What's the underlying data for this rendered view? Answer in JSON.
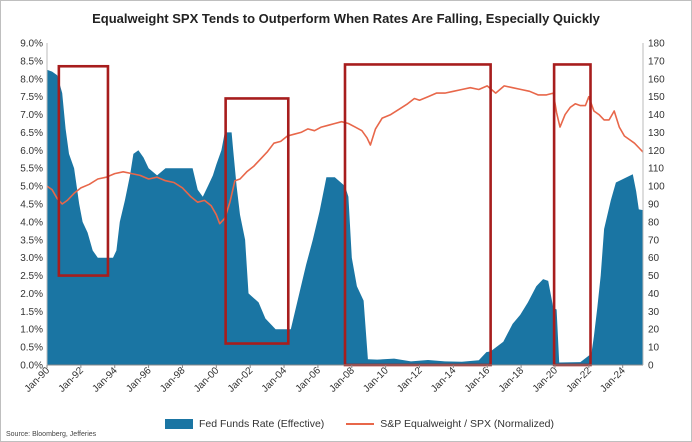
{
  "chart_data": {
    "type": "bar+line",
    "title": "Equalweight SPX Tends to Outperform When Rates Are Falling, Especially Quickly",
    "x_tick_labels": [
      "Jan-90",
      "Jan-92",
      "Jan-94",
      "Jan-96",
      "Jan-98",
      "Jan-00",
      "Jan-02",
      "Jan-04",
      "Jan-06",
      "Jan-08",
      "Jan-10",
      "Jan-12",
      "Jan-14",
      "Jan-16",
      "Jan-18",
      "Jan-20",
      "Jan-22",
      "Jan-24"
    ],
    "x_range": [
      1990.0,
      2025.2
    ],
    "left_axis": {
      "label": "Fed Funds Rate (Effective)",
      "range": [
        0,
        9
      ],
      "ticks": [
        "0.0%",
        "0.5%",
        "1.0%",
        "1.5%",
        "2.0%",
        "2.5%",
        "3.0%",
        "3.5%",
        "4.0%",
        "4.5%",
        "5.0%",
        "5.5%",
        "6.0%",
        "6.5%",
        "7.0%",
        "7.5%",
        "8.0%",
        "8.5%",
        "9.0%"
      ]
    },
    "right_axis": {
      "label": "S&P Equalweight / SPX (Normalized)",
      "range": [
        0,
        180
      ],
      "ticks": [
        "0",
        "10",
        "20",
        "30",
        "40",
        "50",
        "60",
        "70",
        "80",
        "90",
        "100",
        "110",
        "120",
        "130",
        "140",
        "150",
        "160",
        "170",
        "180"
      ]
    },
    "series": [
      {
        "name": "Fed Funds Rate (Effective)",
        "type": "area",
        "color": "#1a75a3",
        "axis": "left",
        "x": [
          1990.0,
          1990.3,
          1990.6,
          1990.9,
          1991.1,
          1991.3,
          1991.6,
          1991.9,
          1992.1,
          1992.4,
          1992.7,
          1993.0,
          1993.5,
          1993.9,
          1994.1,
          1994.3,
          1994.6,
          1994.9,
          1995.1,
          1995.4,
          1995.7,
          1996.0,
          1996.5,
          1997.0,
          1997.5,
          1998.0,
          1998.6,
          1998.9,
          1999.2,
          1999.5,
          1999.8,
          2000.0,
          2000.3,
          2000.5,
          2000.9,
          2001.0,
          2001.2,
          2001.4,
          2001.7,
          2001.9,
          2002.5,
          2002.9,
          2003.5,
          2004.4,
          2004.6,
          2004.9,
          2005.3,
          2005.7,
          2006.1,
          2006.5,
          2007.0,
          2007.6,
          2007.8,
          2008.0,
          2008.3,
          2008.7,
          2008.95,
          2009.5,
          2010.5,
          2011.5,
          2012.5,
          2013.5,
          2014.5,
          2015.5,
          2015.95,
          2016.2,
          2016.95,
          2017.5,
          2017.95,
          2018.4,
          2018.9,
          2019.3,
          2019.6,
          2019.9,
          2020.1,
          2020.25,
          2021.5,
          2022.15,
          2022.3,
          2022.5,
          2022.7,
          2022.9,
          2023.3,
          2023.6,
          2024.6,
          2024.8,
          2024.95,
          2025.2
        ],
        "values": [
          8.25,
          8.2,
          8.1,
          7.6,
          6.6,
          5.9,
          5.5,
          4.5,
          4.0,
          3.7,
          3.2,
          3.0,
          3.0,
          3.0,
          3.2,
          4.0,
          4.6,
          5.3,
          5.9,
          6.0,
          5.8,
          5.5,
          5.3,
          5.5,
          5.5,
          5.5,
          5.5,
          4.9,
          4.7,
          5.0,
          5.3,
          5.6,
          6.0,
          6.5,
          6.5,
          6.0,
          5.0,
          4.2,
          3.5,
          2.0,
          1.75,
          1.3,
          1.0,
          1.0,
          1.4,
          2.0,
          2.8,
          3.5,
          4.3,
          5.25,
          5.25,
          5.0,
          4.7,
          3.0,
          2.2,
          1.8,
          0.16,
          0.15,
          0.18,
          0.1,
          0.14,
          0.1,
          0.09,
          0.13,
          0.36,
          0.38,
          0.65,
          1.15,
          1.4,
          1.75,
          2.2,
          2.4,
          2.35,
          1.6,
          1.55,
          0.07,
          0.08,
          0.32,
          0.8,
          1.6,
          2.5,
          3.8,
          4.6,
          5.1,
          5.33,
          4.85,
          4.35,
          4.33
        ]
      },
      {
        "name": "S&P Equalweight / SPX (Normalized)",
        "type": "line",
        "color": "#e8674a",
        "axis": "right",
        "x": [
          1990.0,
          1990.3,
          1990.6,
          1990.9,
          1991.2,
          1991.6,
          1992.0,
          1992.5,
          1993.0,
          1993.5,
          1994.0,
          1994.5,
          1995.0,
          1995.5,
          1996.0,
          1996.5,
          1997.0,
          1997.5,
          1998.0,
          1998.5,
          1998.9,
          1999.3,
          1999.7,
          2000.0,
          2000.2,
          2000.5,
          2000.8,
          2001.1,
          2001.4,
          2001.8,
          2002.2,
          2002.6,
          2003.0,
          2003.4,
          2003.8,
          2004.2,
          2004.6,
          2005.0,
          2005.4,
          2005.8,
          2006.2,
          2006.6,
          2007.0,
          2007.4,
          2007.8,
          2008.2,
          2008.6,
          2008.9,
          2009.1,
          2009.4,
          2009.8,
          2010.3,
          2010.8,
          2011.3,
          2011.7,
          2012.0,
          2012.5,
          2013.0,
          2013.5,
          2014.0,
          2014.5,
          2015.0,
          2015.5,
          2016.0,
          2016.5,
          2017.0,
          2017.5,
          2018.0,
          2018.5,
          2019.0,
          2019.5,
          2019.9,
          2020.1,
          2020.3,
          2020.6,
          2020.9,
          2021.2,
          2021.5,
          2021.8,
          2022.0,
          2022.3,
          2022.6,
          2022.9,
          2023.2,
          2023.5,
          2023.8,
          2024.1,
          2024.4,
          2024.7,
          2025.0,
          2025.2
        ],
        "values": [
          100,
          98,
          93,
          90,
          92,
          96,
          99,
          101,
          104,
          105,
          107,
          108,
          107,
          106,
          104,
          105,
          103,
          102,
          99,
          94,
          91,
          92,
          89,
          84,
          79,
          82,
          91,
          103,
          104,
          108,
          111,
          115,
          119,
          124,
          125,
          128,
          129,
          130,
          132,
          131,
          133,
          134,
          135,
          136,
          135,
          133,
          131,
          127,
          123,
          132,
          138,
          140,
          143,
          146,
          149,
          148,
          150,
          152,
          152,
          153,
          154,
          155,
          154,
          156,
          152,
          156,
          155,
          154,
          153,
          151,
          151,
          152,
          141,
          133,
          140,
          144,
          146,
          145,
          145,
          150,
          142,
          140,
          137,
          137,
          142,
          133,
          128,
          126,
          124,
          121,
          119
        ]
      }
    ],
    "highlight_boxes": [
      {
        "x_start": 1990.7,
        "x_end": 1993.6,
        "y_low": 50,
        "y_high": 167
      },
      {
        "x_start": 2000.55,
        "x_end": 2004.25,
        "y_low": 12,
        "y_high": 149
      },
      {
        "x_start": 2007.6,
        "x_end": 2016.2,
        "y_low": 0,
        "y_high": 168
      },
      {
        "x_start": 2019.95,
        "x_end": 2022.1,
        "y_low": 0,
        "y_high": 168
      }
    ],
    "legend_position": "bottom"
  },
  "source": "Source: Bloomberg, Jefferies"
}
